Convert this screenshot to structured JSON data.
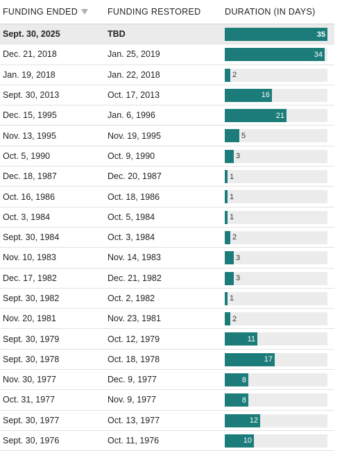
{
  "header": {
    "col1": "FUNDING ENDED",
    "col2": "FUNDING RESTORED",
    "col3": "DURATION (IN DAYS)",
    "sort_icon": "sort-down-triangle-icon"
  },
  "colors": {
    "bar": "#1b7c7a",
    "track": "#ececec",
    "highlight_row": "#ebebeb"
  },
  "chart_data": {
    "type": "bar",
    "orientation": "horizontal",
    "xlim": [
      0,
      35
    ],
    "rows": [
      {
        "ended": "Sept. 30, 2025",
        "restored": "TBD",
        "days": 35,
        "highlight": true
      },
      {
        "ended": "Dec. 21, 2018",
        "restored": "Jan. 25, 2019",
        "days": 34
      },
      {
        "ended": "Jan. 19, 2018",
        "restored": "Jan. 22, 2018",
        "days": 2
      },
      {
        "ended": "Sept. 30, 2013",
        "restored": "Oct. 17, 2013",
        "days": 16
      },
      {
        "ended": "Dec. 15, 1995",
        "restored": "Jan. 6, 1996",
        "days": 21
      },
      {
        "ended": "Nov. 13, 1995",
        "restored": "Nov. 19, 1995",
        "days": 5
      },
      {
        "ended": "Oct. 5, 1990",
        "restored": "Oct. 9, 1990",
        "days": 3
      },
      {
        "ended": "Dec. 18, 1987",
        "restored": "Dec. 20, 1987",
        "days": 1
      },
      {
        "ended": "Oct. 16, 1986",
        "restored": "Oct. 18, 1986",
        "days": 1
      },
      {
        "ended": "Oct. 3, 1984",
        "restored": "Oct. 5, 1984",
        "days": 1
      },
      {
        "ended": "Sept. 30, 1984",
        "restored": "Oct. 3, 1984",
        "days": 2
      },
      {
        "ended": "Nov. 10, 1983",
        "restored": "Nov. 14, 1983",
        "days": 3
      },
      {
        "ended": "Dec. 17, 1982",
        "restored": "Dec. 21, 1982",
        "days": 3
      },
      {
        "ended": "Sept. 30, 1982",
        "restored": "Oct. 2, 1982",
        "days": 1
      },
      {
        "ended": "Nov. 20, 1981",
        "restored": "Nov. 23, 1981",
        "days": 2
      },
      {
        "ended": "Sept. 30, 1979",
        "restored": "Oct. 12, 1979",
        "days": 11
      },
      {
        "ended": "Sept. 30, 1978",
        "restored": "Oct. 18, 1978",
        "days": 17
      },
      {
        "ended": "Nov. 30, 1977",
        "restored": "Dec. 9, 1977",
        "days": 8
      },
      {
        "ended": "Oct. 31, 1977",
        "restored": "Nov. 9, 1977",
        "days": 8
      },
      {
        "ended": "Sept. 30, 1977",
        "restored": "Oct. 13, 1977",
        "days": 12
      },
      {
        "ended": "Sept. 30, 1976",
        "restored": "Oct. 11, 1976",
        "days": 10
      }
    ]
  }
}
